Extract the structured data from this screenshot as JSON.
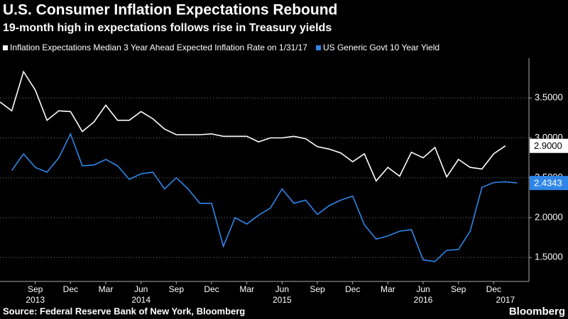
{
  "chart_data": {
    "type": "line",
    "title": "U.S. Consumer Inflation Expectations Rebound",
    "subtitle": "19-month high in expectations follows rise in Treasury yields",
    "source": "Source: Federal Reserve Bank of New York, Bloomberg",
    "brand": "Bloomberg",
    "x": [
      "2013-06",
      "2013-07",
      "2013-08",
      "2013-09",
      "2013-10",
      "2013-11",
      "2013-12",
      "2014-01",
      "2014-02",
      "2014-03",
      "2014-04",
      "2014-05",
      "2014-06",
      "2014-07",
      "2014-08",
      "2014-09",
      "2014-10",
      "2014-11",
      "2014-12",
      "2015-01",
      "2015-02",
      "2015-03",
      "2015-04",
      "2015-05",
      "2015-06",
      "2015-07",
      "2015-08",
      "2015-09",
      "2015-10",
      "2015-11",
      "2015-12",
      "2016-01",
      "2016-02",
      "2016-03",
      "2016-04",
      "2016-05",
      "2016-06",
      "2016-07",
      "2016-08",
      "2016-09",
      "2016-10",
      "2016-11",
      "2016-12",
      "2017-01",
      "2017-02"
    ],
    "series": [
      {
        "name": "Inflation Expectations Median 3 Year Ahead Expected Inflation Rate  on 1/31/17",
        "color": "#ffffff",
        "values": [
          3.45,
          3.34,
          3.83,
          3.6,
          3.22,
          3.34,
          3.33,
          3.08,
          3.2,
          3.41,
          3.22,
          3.22,
          3.33,
          3.24,
          3.11,
          3.04,
          3.04,
          3.04,
          3.05,
          3.02,
          3.02,
          3.02,
          2.95,
          3.0,
          3.0,
          3.02,
          2.99,
          2.89,
          2.86,
          2.81,
          2.7,
          2.8,
          2.46,
          2.63,
          2.52,
          2.82,
          2.75,
          2.88,
          2.51,
          2.73,
          2.63,
          2.61,
          2.8,
          2.9,
          null
        ],
        "value_labels": [
          null,
          null,
          null,
          null,
          null,
          null,
          null,
          null,
          null,
          null,
          null,
          null,
          null,
          null,
          null,
          null,
          null,
          null,
          null,
          null,
          null,
          null,
          null,
          null,
          null,
          null,
          null,
          null,
          null,
          null,
          null,
          null,
          null,
          null,
          null,
          null,
          null,
          null,
          null,
          null,
          null,
          null,
          null,
          "2.9000",
          null
        ]
      },
      {
        "name": "US Generic Govt 10 Year Yield",
        "color": "#2f86e8",
        "values": [
          null,
          2.59,
          2.8,
          2.63,
          2.57,
          2.75,
          3.05,
          2.65,
          2.66,
          2.73,
          2.65,
          2.48,
          2.55,
          2.57,
          2.36,
          2.5,
          2.36,
          2.18,
          2.18,
          1.64,
          2.0,
          1.92,
          2.03,
          2.12,
          2.36,
          2.18,
          2.22,
          2.04,
          2.15,
          2.22,
          2.27,
          1.91,
          1.73,
          1.77,
          1.83,
          1.85,
          1.47,
          1.45,
          1.59,
          1.6,
          1.83,
          2.38,
          2.44,
          2.45,
          2.4343
        ],
        "value_labels": [
          null,
          null,
          null,
          null,
          null,
          null,
          null,
          null,
          null,
          null,
          null,
          null,
          null,
          null,
          null,
          null,
          null,
          null,
          null,
          null,
          null,
          null,
          null,
          null,
          null,
          null,
          null,
          null,
          null,
          null,
          null,
          null,
          null,
          null,
          null,
          null,
          null,
          null,
          null,
          null,
          null,
          null,
          null,
          null,
          "2.4343"
        ]
      }
    ],
    "xlim": [
      "2013-06",
      "2017-03"
    ],
    "xticks": [
      {
        "value": "2013-09",
        "label": "Sep"
      },
      {
        "value": "2013-12",
        "label": "Dec"
      },
      {
        "value": "2014-03",
        "label": "Mar"
      },
      {
        "value": "2014-06",
        "label": "Jun"
      },
      {
        "value": "2014-09",
        "label": "Sep"
      },
      {
        "value": "2014-12",
        "label": "Dec"
      },
      {
        "value": "2015-03",
        "label": "Mar"
      },
      {
        "value": "2015-06",
        "label": "Jun"
      },
      {
        "value": "2015-09",
        "label": "Sep"
      },
      {
        "value": "2015-12",
        "label": "Dec"
      },
      {
        "value": "2016-03",
        "label": "Mar"
      },
      {
        "value": "2016-06",
        "label": "Jun"
      },
      {
        "value": "2016-09",
        "label": "Sep"
      },
      {
        "value": "2016-12",
        "label": "Dec"
      }
    ],
    "year_ticks": [
      {
        "value": "2013-09",
        "label": "2013"
      },
      {
        "value": "2014-06",
        "label": "2014"
      },
      {
        "value": "2015-06",
        "label": "2015"
      },
      {
        "value": "2016-06",
        "label": "2016"
      },
      {
        "value": "2017-01",
        "label": "2017"
      }
    ],
    "ylim": [
      1.2,
      4.0
    ],
    "yticks": [
      {
        "value": 1.5,
        "label": "1.5000"
      },
      {
        "value": 2.0,
        "label": "2.0000"
      },
      {
        "value": 2.5,
        "label": "2.5000"
      },
      {
        "value": 3.0,
        "label": "3.0000"
      },
      {
        "value": 3.5,
        "label": "3.5000"
      }
    ],
    "grid": true
  }
}
